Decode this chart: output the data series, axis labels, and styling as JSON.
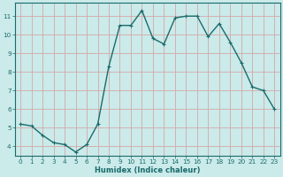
{
  "x": [
    0,
    1,
    2,
    3,
    4,
    5,
    6,
    7,
    8,
    9,
    10,
    11,
    12,
    13,
    14,
    15,
    16,
    17,
    18,
    19,
    20,
    21,
    22,
    23
  ],
  "y": [
    5.2,
    5.1,
    4.6,
    4.2,
    4.1,
    3.7,
    4.1,
    5.2,
    8.3,
    10.5,
    10.5,
    11.3,
    9.8,
    9.5,
    10.9,
    11.0,
    11.0,
    9.9,
    10.6,
    9.6,
    8.5,
    7.2,
    7.0,
    6.0
  ],
  "xlabel": "Humidex (Indice chaleur)",
  "ylim": [
    3.5,
    11.7
  ],
  "xlim": [
    -0.5,
    23.5
  ],
  "bg_color": "#cbeaea",
  "grid_color_major": "#d4a8a8",
  "line_color": "#1a6b6b",
  "marker_color": "#1a6b6b",
  "yticks": [
    4,
    5,
    6,
    7,
    8,
    9,
    10,
    11
  ],
  "xticks": [
    0,
    1,
    2,
    3,
    4,
    5,
    6,
    7,
    8,
    9,
    10,
    11,
    12,
    13,
    14,
    15,
    16,
    17,
    18,
    19,
    20,
    21,
    22,
    23
  ],
  "xlabel_fontsize": 6.0,
  "tick_fontsize": 5.2,
  "line_width": 1.0,
  "marker_size": 3.0
}
